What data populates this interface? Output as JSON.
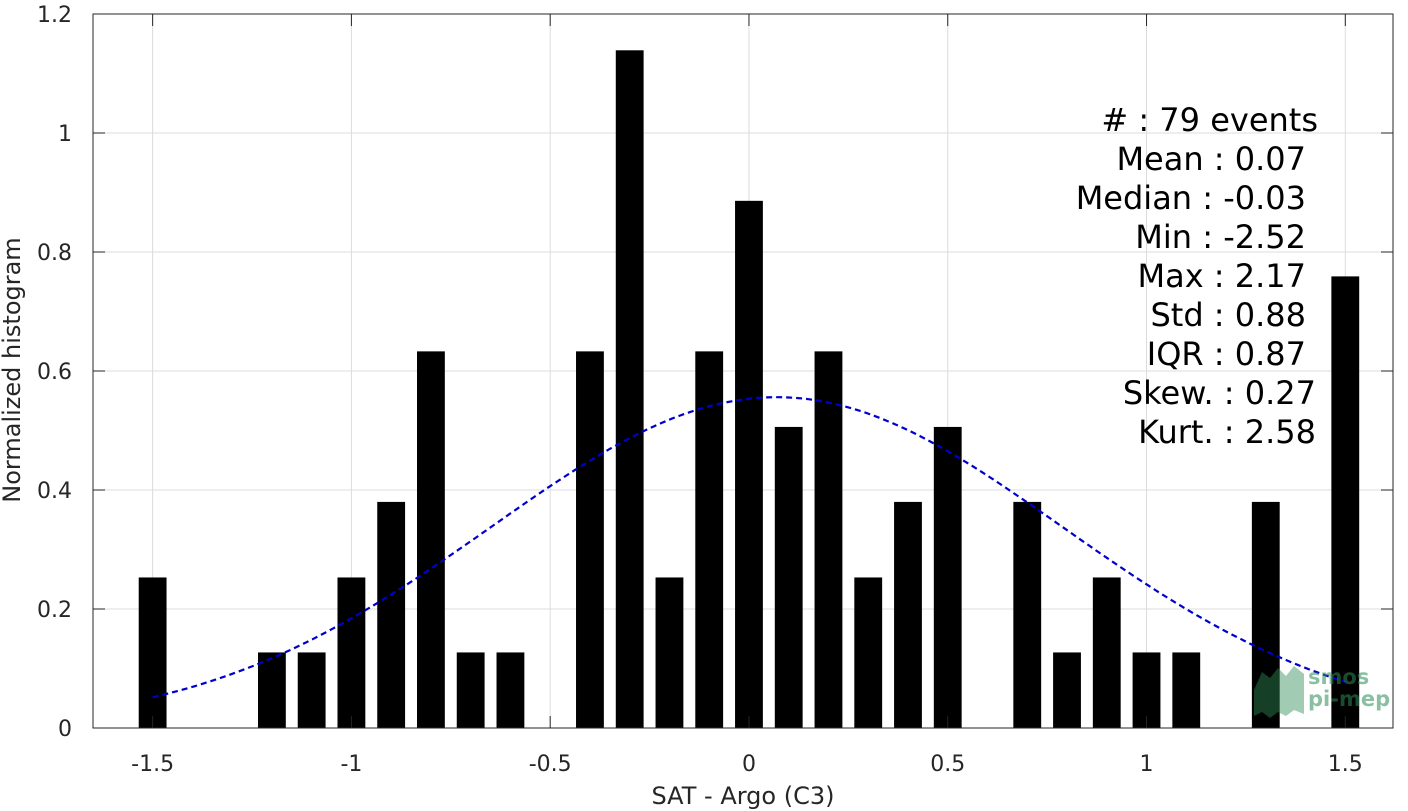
{
  "chart_data": {
    "type": "bar",
    "xlabel": "SAT - Argo (C3)",
    "ylabel": "Normalized histogram",
    "xlim": [
      -1.65,
      1.62
    ],
    "ylim": [
      0,
      1.2
    ],
    "grid": true,
    "x_ticks": [
      -1.5,
      -1,
      -0.5,
      0,
      0.5,
      1,
      1.5
    ],
    "x_tick_labels": [
      "-1.5",
      "-1",
      "-0.5",
      "0",
      "0.5",
      "1",
      "1.5"
    ],
    "y_ticks": [
      0,
      0.2,
      0.4,
      0.6,
      0.8,
      1,
      1.2
    ],
    "y_tick_labels": [
      "0",
      "0.2",
      "0.4",
      "0.6",
      "0.8",
      "1",
      "1.2"
    ],
    "bar_width": 0.07,
    "bars": [
      {
        "x": -1.5,
        "y": 0.253
      },
      {
        "x": -1.2,
        "y": 0.127
      },
      {
        "x": -1.1,
        "y": 0.127
      },
      {
        "x": -1.0,
        "y": 0.253
      },
      {
        "x": -0.9,
        "y": 0.38
      },
      {
        "x": -0.8,
        "y": 0.633
      },
      {
        "x": -0.7,
        "y": 0.127
      },
      {
        "x": -0.6,
        "y": 0.127
      },
      {
        "x": -0.4,
        "y": 0.633
      },
      {
        "x": -0.3,
        "y": 1.139
      },
      {
        "x": -0.2,
        "y": 0.253
      },
      {
        "x": -0.1,
        "y": 0.633
      },
      {
        "x": 0.0,
        "y": 0.886
      },
      {
        "x": 0.1,
        "y": 0.506
      },
      {
        "x": 0.2,
        "y": 0.633
      },
      {
        "x": 0.3,
        "y": 0.253
      },
      {
        "x": 0.4,
        "y": 0.38
      },
      {
        "x": 0.5,
        "y": 0.506
      },
      {
        "x": 0.7,
        "y": 0.38
      },
      {
        "x": 0.8,
        "y": 0.127
      },
      {
        "x": 0.9,
        "y": 0.253
      },
      {
        "x": 1.0,
        "y": 0.127
      },
      {
        "x": 1.1,
        "y": 0.127
      },
      {
        "x": 1.3,
        "y": 0.38
      },
      {
        "x": 1.5,
        "y": 0.759
      }
    ],
    "fit_curve": {
      "type": "gaussian",
      "mean": 0.07,
      "peak": 0.556,
      "sigma": 0.72,
      "x_range": [
        -1.5,
        1.5
      ],
      "color": "#0000cc",
      "style": "dashed"
    },
    "bar_color": "#000000",
    "stats": [
      "#  : 79 events",
      "Mean : 0.07",
      "Median : -0.03",
      "Min : -2.52",
      "Max : 2.17",
      "Std : 0.88",
      "IQR : 0.87",
      "Skew. : 0.27",
      "Kurt. : 2.58"
    ]
  },
  "logo": {
    "line1": "smos",
    "line2": "pi-mep",
    "color": "#2e8b57"
  }
}
